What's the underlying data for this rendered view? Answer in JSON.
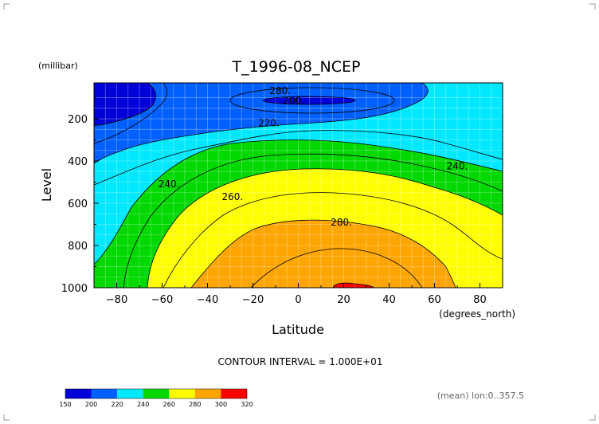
{
  "chart_data": {
    "type": "heatmap",
    "title": "T_1996-08_NCEP",
    "xlabel": "Latitude",
    "ylabel": "Level",
    "x_units": "(degrees_north)",
    "y_units": "(millibar)",
    "xlim": [
      -90,
      90
    ],
    "ylim": [
      1000,
      30
    ],
    "x_ticks": [
      -80,
      -60,
      -40,
      -20,
      0,
      20,
      40,
      60,
      80
    ],
    "y_ticks": [
      200,
      400,
      600,
      800,
      1000
    ],
    "contour_labels": [
      {
        "text": "280.",
        "lat": -8,
        "level": 68
      },
      {
        "text": "200.",
        "lat": -2,
        "level": 115
      },
      {
        "text": "220.",
        "lat": -13,
        "level": 220
      },
      {
        "text": "240.",
        "lat": -57,
        "level": 510
      },
      {
        "text": "240.",
        "lat": 70,
        "level": 425
      },
      {
        "text": "260.",
        "lat": -29,
        "level": 570
      },
      {
        "text": "280.",
        "lat": 19,
        "level": 690
      }
    ],
    "contour_interval_text": "CONTOUR INTERVAL = 1.000E+01",
    "colorbar": {
      "ticks": [
        "150",
        "200",
        "220",
        "240",
        "260",
        "280",
        "300",
        "320"
      ],
      "colors": [
        "#0000d8",
        "#0060ff",
        "#00e8ff",
        "#00d800",
        "#ffff00",
        "#ffa500",
        "#ff0000"
      ]
    },
    "subtitle": "(mean) lon:0..357.5",
    "grid": true,
    "levels": [
      200,
      220,
      240,
      260,
      280,
      300
    ]
  }
}
